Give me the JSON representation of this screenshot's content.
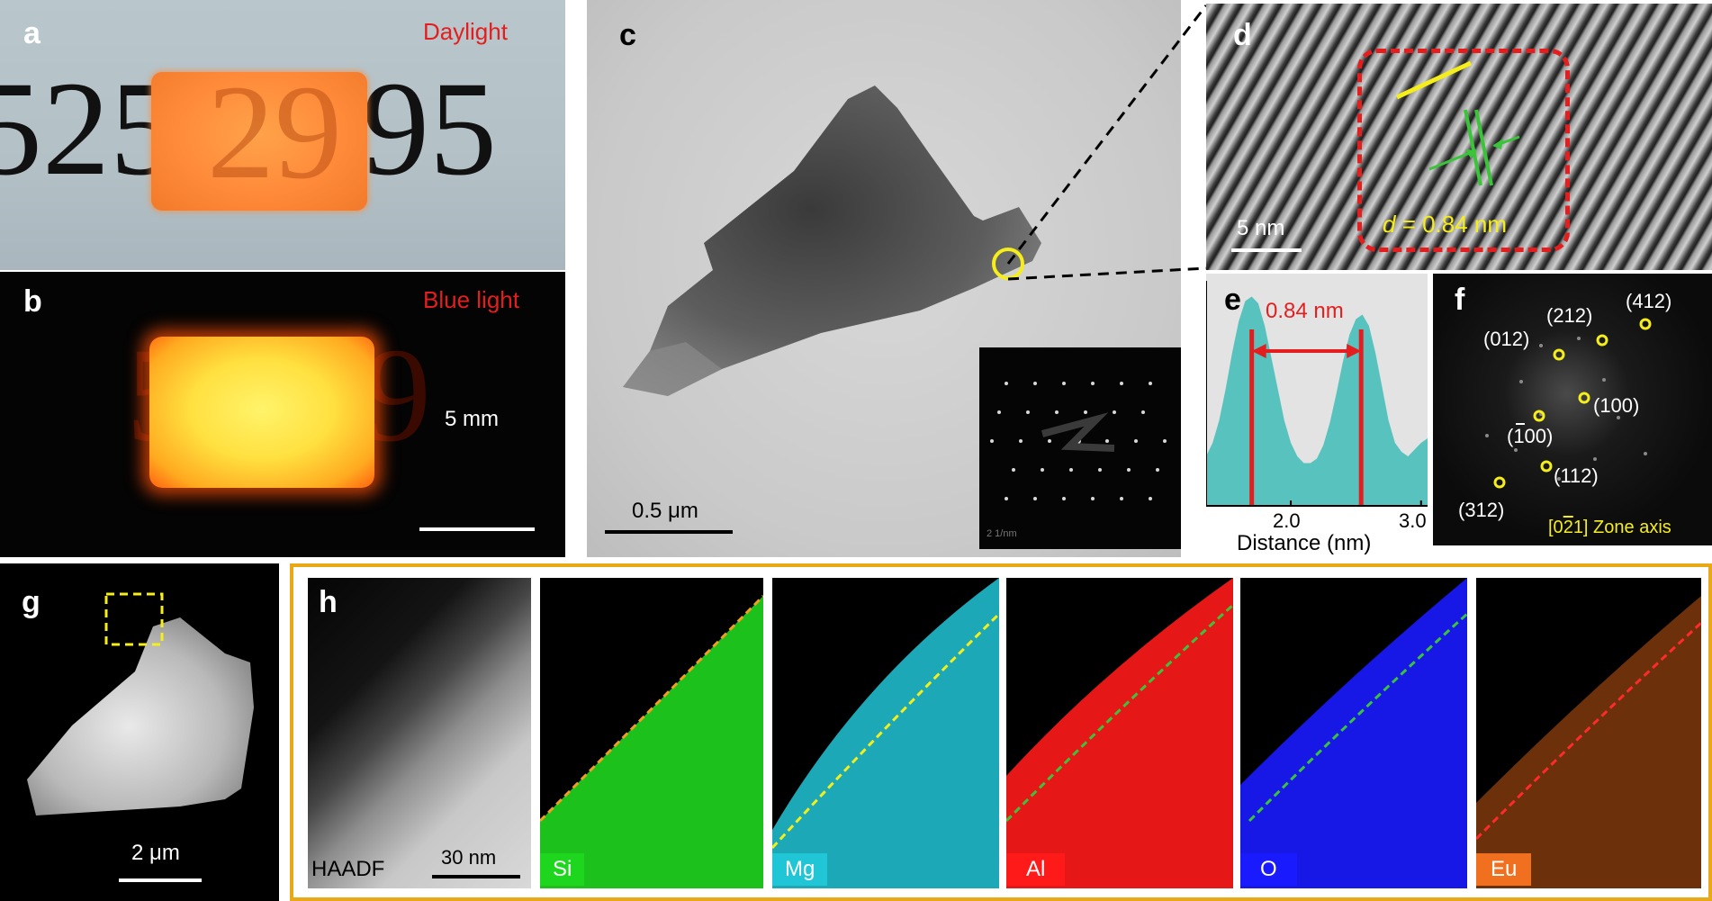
{
  "figure": {
    "panels": {
      "a": {
        "letter": "a",
        "condition": "Daylight",
        "digits_left": "525",
        "digits_mid": "29",
        "digits_right": "95"
      },
      "b": {
        "letter": "b",
        "condition": "Blue light",
        "digit_left": "5",
        "digit_right": "9",
        "scale": "5 mm"
      },
      "c": {
        "letter": "c",
        "scale": "0.5 μm",
        "inset_scale": "2 1/nm"
      },
      "d": {
        "letter": "d",
        "scale": "5 nm",
        "d_symbol": "d",
        "d_value": " = 0.84 nm"
      },
      "e": {
        "letter": "e",
        "spacing": "0.84 nm",
        "xlabel": "Distance (nm)",
        "ticks": [
          "2.0",
          "3.0"
        ]
      },
      "f": {
        "letter": "f",
        "spots": [
          "(412)",
          "(212)",
          "(012)",
          "(100)",
          "(100)",
          "(112)",
          "(312)"
        ],
        "zone_axis_prefix": "[0",
        "zone_axis_bar": "2",
        "zone_axis_suffix": "1] Zone axis"
      },
      "g": {
        "letter": "g",
        "scale": "2 μm"
      },
      "h": {
        "letter": "h",
        "haadf": "HAADF",
        "scale": "30 nm",
        "elements": [
          "Si",
          "Mg",
          "Al",
          "O",
          "Eu"
        ]
      }
    },
    "colors": {
      "si": "#1fd61f",
      "mg": "#21c6d6",
      "al": "#ff1a1a",
      "o": "#1a1aff",
      "eu": "#c45a14",
      "accent_red": "#e41e1e",
      "yellow": "#f5ee1a",
      "frame": "#e8a818"
    }
  },
  "chart_data": {
    "type": "area",
    "title": "",
    "xlabel": "Distance (nm)",
    "ylabel": "",
    "xlim": [
      1.35,
      3.05
    ],
    "ylim": [
      0,
      1
    ],
    "x": [
      1.35,
      1.4,
      1.45,
      1.5,
      1.55,
      1.6,
      1.65,
      1.7,
      1.75,
      1.8,
      1.85,
      1.9,
      1.95,
      2.0,
      2.05,
      2.1,
      2.15,
      2.2,
      2.25,
      2.3,
      2.35,
      2.4,
      2.45,
      2.5,
      2.55,
      2.6,
      2.65,
      2.7,
      2.75,
      2.8,
      2.85,
      2.9,
      2.95,
      3.0,
      3.05
    ],
    "series": [
      {
        "values": [
          0.22,
          0.28,
          0.38,
          0.52,
          0.68,
          0.82,
          0.91,
          0.93,
          0.9,
          0.8,
          0.66,
          0.52,
          0.38,
          0.28,
          0.22,
          0.19,
          0.19,
          0.21,
          0.27,
          0.37,
          0.5,
          0.64,
          0.76,
          0.83,
          0.85,
          0.8,
          0.68,
          0.53,
          0.38,
          0.28,
          0.24,
          0.22,
          0.25,
          0.28,
          0.3
        ]
      }
    ],
    "annotations": [
      {
        "type": "vline",
        "x": 1.7
      },
      {
        "type": "vline",
        "x": 2.54
      },
      {
        "type": "arrow",
        "x1": 1.7,
        "x2": 2.54,
        "label": "0.84 nm"
      }
    ],
    "tick_labels": [
      "2.0",
      "3.0"
    ]
  }
}
